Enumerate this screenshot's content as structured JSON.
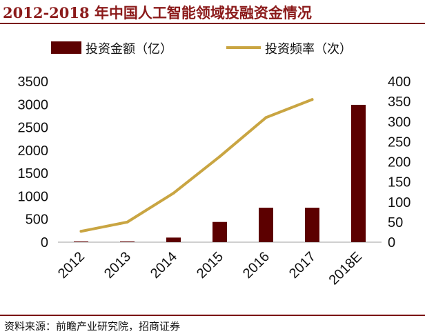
{
  "title": "2012-2018 年中国人工智能领域投融资金情况",
  "source": "资料来源：前瞻产业研究院，招商证券",
  "colors": {
    "bar": "#5c0000",
    "line": "#c9a542",
    "title": "#8b1a1a",
    "rule": "#7a0a0a"
  },
  "chart_data": {
    "type": "bar",
    "categories": [
      "2012",
      "2013",
      "2014",
      "2015",
      "2016",
      "2017",
      "2018E"
    ],
    "series": [
      {
        "name": "投资金额（亿）",
        "kind": "bar",
        "axis": "left",
        "values": [
          12,
          15,
          100,
          440,
          750,
          750,
          2990
        ]
      },
      {
        "name": "投资频率（次）",
        "kind": "line",
        "axis": "right",
        "values": [
          27,
          50,
          122,
          213,
          310,
          355,
          null
        ]
      }
    ],
    "y_left": {
      "min": 0,
      "max": 3500,
      "ticks": [
        0,
        500,
        1000,
        1500,
        2000,
        2500,
        3000,
        3500
      ]
    },
    "y_right": {
      "min": 0,
      "max": 400,
      "ticks": [
        0,
        50,
        100,
        150,
        200,
        250,
        300,
        350,
        400
      ]
    },
    "legend_position": "top",
    "grid": false
  }
}
